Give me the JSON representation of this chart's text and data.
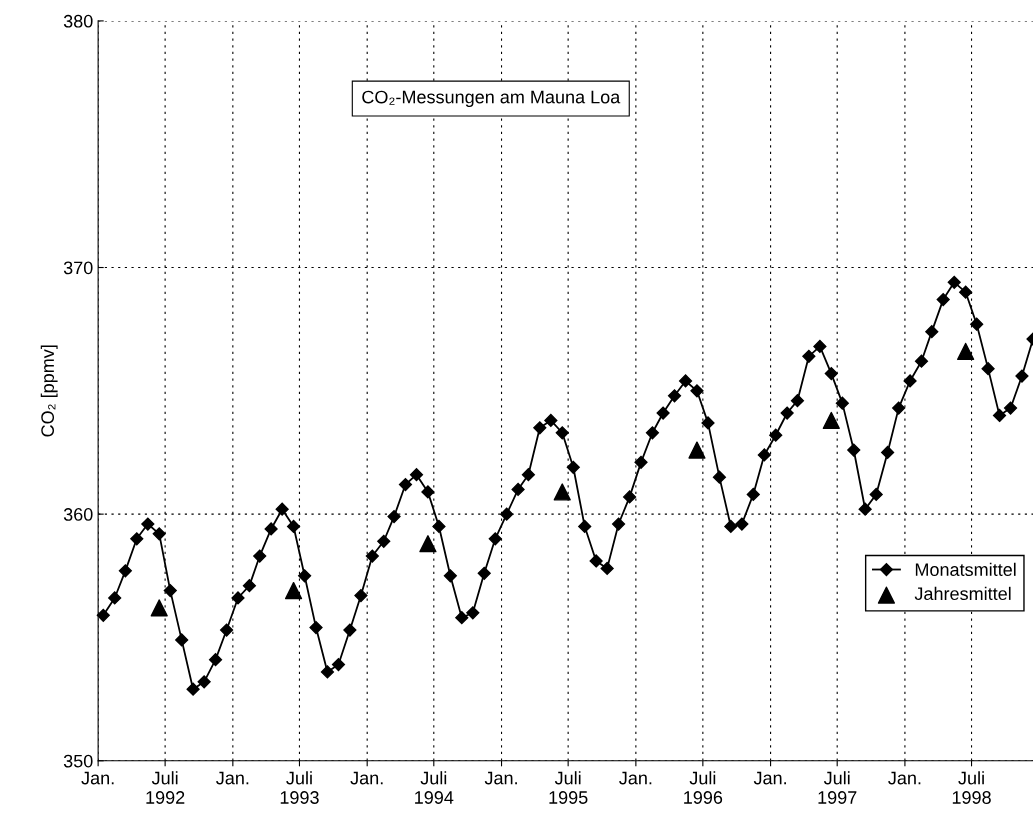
{
  "chart_data": {
    "type": "line",
    "title": "CO₂-Messungen am Mauna Loa",
    "ylabel": "CO₂ [ppmv]",
    "ylim": [
      350,
      380
    ],
    "yticks": [
      350,
      360,
      370,
      380
    ],
    "xlim": [
      "1992-01-01",
      "1998-12-15"
    ],
    "xticks": [
      {
        "value": "1992-01-01",
        "label": "Jan."
      },
      {
        "value": "1992-07-01",
        "label": "Juli\n1992"
      },
      {
        "value": "1993-01-01",
        "label": "Jan."
      },
      {
        "value": "1993-07-01",
        "label": "Juli\n1993"
      },
      {
        "value": "1994-01-01",
        "label": "Jan."
      },
      {
        "value": "1994-07-01",
        "label": "Juli\n1994"
      },
      {
        "value": "1995-01-01",
        "label": "Jan."
      },
      {
        "value": "1995-07-01",
        "label": "Juli\n1995"
      },
      {
        "value": "1996-01-01",
        "label": "Jan."
      },
      {
        "value": "1996-07-01",
        "label": "Juli\n1996"
      },
      {
        "value": "1997-01-01",
        "label": "Jan."
      },
      {
        "value": "1997-07-01",
        "label": "Juli\n1997"
      },
      {
        "value": "1998-01-01",
        "label": "Jan."
      },
      {
        "value": "1998-07-01",
        "label": "Juli\n1998"
      }
    ],
    "grid": true,
    "legend": "right",
    "series": [
      {
        "name": "Monatsmittel",
        "marker": "diamond",
        "color": "#000000",
        "x": [
          "1992-01-15",
          "1992-02-15",
          "1992-03-15",
          "1992-04-15",
          "1992-05-15",
          "1992-06-15",
          "1992-07-15",
          "1992-08-15",
          "1992-09-15",
          "1992-10-15",
          "1992-11-15",
          "1992-12-15",
          "1993-01-15",
          "1993-02-15",
          "1993-03-15",
          "1993-04-15",
          "1993-05-15",
          "1993-06-15",
          "1993-07-15",
          "1993-08-15",
          "1993-09-15",
          "1993-10-15",
          "1993-11-15",
          "1993-12-15",
          "1994-01-15",
          "1994-02-15",
          "1994-03-15",
          "1994-04-15",
          "1994-05-15",
          "1994-06-15",
          "1994-07-15",
          "1994-08-15",
          "1994-09-15",
          "1994-10-15",
          "1994-11-15",
          "1994-12-15",
          "1995-01-15",
          "1995-02-15",
          "1995-03-15",
          "1995-04-15",
          "1995-05-15",
          "1995-06-15",
          "1995-07-15",
          "1995-08-15",
          "1995-09-15",
          "1995-10-15",
          "1995-11-15",
          "1995-12-15",
          "1996-01-15",
          "1996-02-15",
          "1996-03-15",
          "1996-04-15",
          "1996-05-15",
          "1996-06-15",
          "1996-07-15",
          "1996-08-15",
          "1996-09-15",
          "1996-10-15",
          "1996-11-15",
          "1996-12-15",
          "1997-01-15",
          "1997-02-15",
          "1997-03-15",
          "1997-04-15",
          "1997-05-15",
          "1997-06-15",
          "1997-07-15",
          "1997-08-15",
          "1997-09-15",
          "1997-10-15",
          "1997-11-15",
          "1997-12-15",
          "1998-01-15",
          "1998-02-15",
          "1998-03-15",
          "1998-04-15",
          "1998-05-15",
          "1998-06-15",
          "1998-07-15",
          "1998-08-15",
          "1998-09-15",
          "1998-10-15",
          "1998-11-15",
          "1998-12-15"
        ],
        "values": [
          355.9,
          356.6,
          357.7,
          359.0,
          359.6,
          359.2,
          356.9,
          354.9,
          352.9,
          353.2,
          354.1,
          355.3,
          356.6,
          357.1,
          358.3,
          359.4,
          360.2,
          359.5,
          357.5,
          355.4,
          353.6,
          353.9,
          355.3,
          356.7,
          358.3,
          358.9,
          359.9,
          361.2,
          361.6,
          360.9,
          359.5,
          357.5,
          355.8,
          356.0,
          357.6,
          359.0,
          360.0,
          361.0,
          361.6,
          363.5,
          363.8,
          363.3,
          361.9,
          359.5,
          358.1,
          357.8,
          359.6,
          360.7,
          362.1,
          363.3,
          364.1,
          364.8,
          365.4,
          365.0,
          363.7,
          361.5,
          359.5,
          359.6,
          360.8,
          362.4,
          363.2,
          364.1,
          364.6,
          366.4,
          366.8,
          365.7,
          364.5,
          362.6,
          360.2,
          360.8,
          362.5,
          364.3,
          365.4,
          366.2,
          367.4,
          368.7,
          369.4,
          369.0,
          367.7,
          365.9,
          364.0,
          364.3,
          365.6,
          367.1
        ]
      },
      {
        "name": "Jahresmittel",
        "type": "scatter",
        "marker": "triangle",
        "color": "#000000",
        "x": [
          "1992-06-15",
          "1993-06-15",
          "1994-06-15",
          "1995-06-15",
          "1996-06-15",
          "1997-06-15",
          "1998-06-15"
        ],
        "values": [
          356.2,
          356.9,
          358.8,
          360.9,
          362.6,
          363.8,
          366.6
        ]
      }
    ]
  }
}
